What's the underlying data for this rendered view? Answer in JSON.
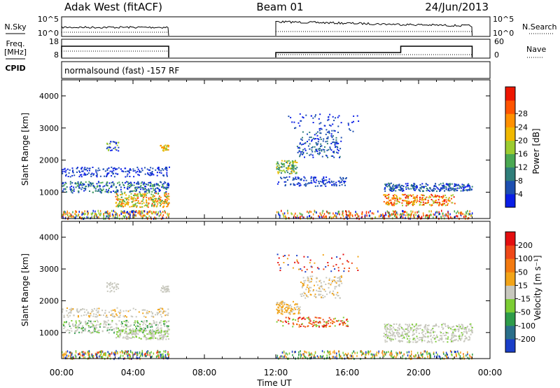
{
  "header": {
    "station": "Adak West (fitACF)",
    "beam": "Beam 01",
    "date": "24/Jun/2013"
  },
  "nsky": {
    "label": "N.Sky",
    "right_label": "N.Search",
    "left_ticks": [
      "10^5",
      "10^0"
    ],
    "right_ticks": [
      "10^5",
      "10^0"
    ],
    "on_intervals": [
      [
        "00:00",
        "06:00"
      ],
      [
        "12:00",
        "23:00"
      ]
    ]
  },
  "freq": {
    "label_line1": "Freq.",
    "label_line2": "[MHz]",
    "left_ticks": [
      "18",
      "8"
    ],
    "right_ticks": [
      "60",
      "0"
    ],
    "right_label": "Nave",
    "freq_segments": [
      {
        "start": "00:00",
        "end": "06:00",
        "level": 0.8
      },
      {
        "start": "12:00",
        "end": "19:00",
        "level": 0.35
      },
      {
        "start": "19:00",
        "end": "23:00",
        "level": 0.8
      }
    ]
  },
  "cpid": {
    "label": "CPID",
    "text": "normalsound (fast) -157 RF"
  },
  "chart_data": [
    {
      "type": "heatmap",
      "panel": "power",
      "ylabel": "Slant Range [km]",
      "ylim": [
        180,
        4500
      ],
      "yticks": [
        "1000",
        "2000",
        "3000",
        "4000"
      ],
      "xlim": [
        "00:00",
        "24:00"
      ],
      "colorbar": {
        "label": "Power [dB]",
        "ticks": [
          "4",
          "8",
          "12",
          "16",
          "20",
          "24",
          "28"
        ],
        "colors": [
          "#0a1ee6",
          "#1d4fb0",
          "#2f7e7a",
          "#4aa852",
          "#9ccc30",
          "#f0b800",
          "#ff9000",
          "#ff5400",
          "#ee1600"
        ]
      },
      "data_intervals": [
        [
          "00:00",
          "06:00"
        ],
        [
          "12:00",
          "23:00"
        ]
      ]
    },
    {
      "type": "heatmap",
      "panel": "velocity",
      "ylabel": "Slant Range [km]",
      "ylim": [
        180,
        4500
      ],
      "yticks": [
        "1000",
        "2000",
        "3000",
        "4000"
      ],
      "xlim": [
        "00:00",
        "24:00"
      ],
      "colorbar": {
        "label": "Velocity [m s⁻¹]",
        "ticks": [
          "200",
          "100",
          "50",
          "15",
          "-15",
          "-50",
          "-100",
          "-200"
        ],
        "colors": [
          "#1a3ec8",
          "#2a6f8a",
          "#2e9c4a",
          "#7ccd34",
          "#c8c8be",
          "#f2a418",
          "#f37a10",
          "#ef4818",
          "#e40f10"
        ]
      },
      "data_intervals": [
        [
          "00:00",
          "06:00"
        ],
        [
          "12:00",
          "23:00"
        ]
      ]
    }
  ],
  "xaxis": {
    "label": "Time UT",
    "ticks": [
      "00:00",
      "04:00",
      "08:00",
      "12:00",
      "16:00",
      "20:00",
      "00:00"
    ]
  }
}
